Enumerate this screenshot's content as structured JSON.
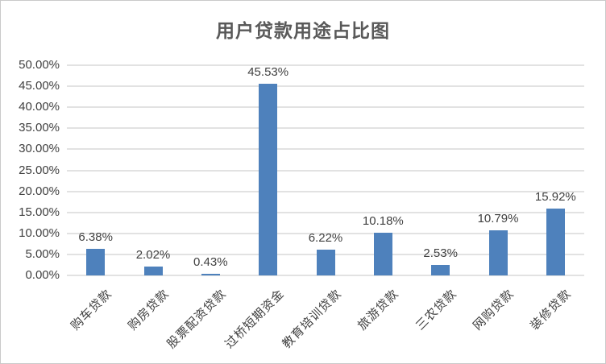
{
  "chart_data": {
    "type": "bar",
    "title": "用户贷款用途占比图",
    "categories": [
      "购车贷款",
      "购房贷款",
      "股票配资贷款",
      "过桥短期资金",
      "教育培训贷款",
      "旅游贷款",
      "三农贷款",
      "网购贷款",
      "装修贷款"
    ],
    "values": [
      6.38,
      2.02,
      0.43,
      45.53,
      6.22,
      10.18,
      2.53,
      10.79,
      15.92
    ],
    "data_labels": [
      "6.38%",
      "2.02%",
      "0.43%",
      "45.53%",
      "6.22%",
      "10.18%",
      "2.53%",
      "10.79%",
      "15.92%"
    ],
    "y_ticks": [
      "0.00%",
      "5.00%",
      "10.00%",
      "15.00%",
      "20.00%",
      "25.00%",
      "30.00%",
      "35.00%",
      "40.00%",
      "45.00%",
      "50.00%"
    ],
    "ylim": [
      0,
      50
    ],
    "xlabel": "",
    "ylabel": "",
    "grid": true,
    "legend": "none",
    "bar_color": "#4e81bc",
    "gridline_color": "#e2e2e2",
    "title_color": "#595959",
    "label_color": "#404040"
  }
}
